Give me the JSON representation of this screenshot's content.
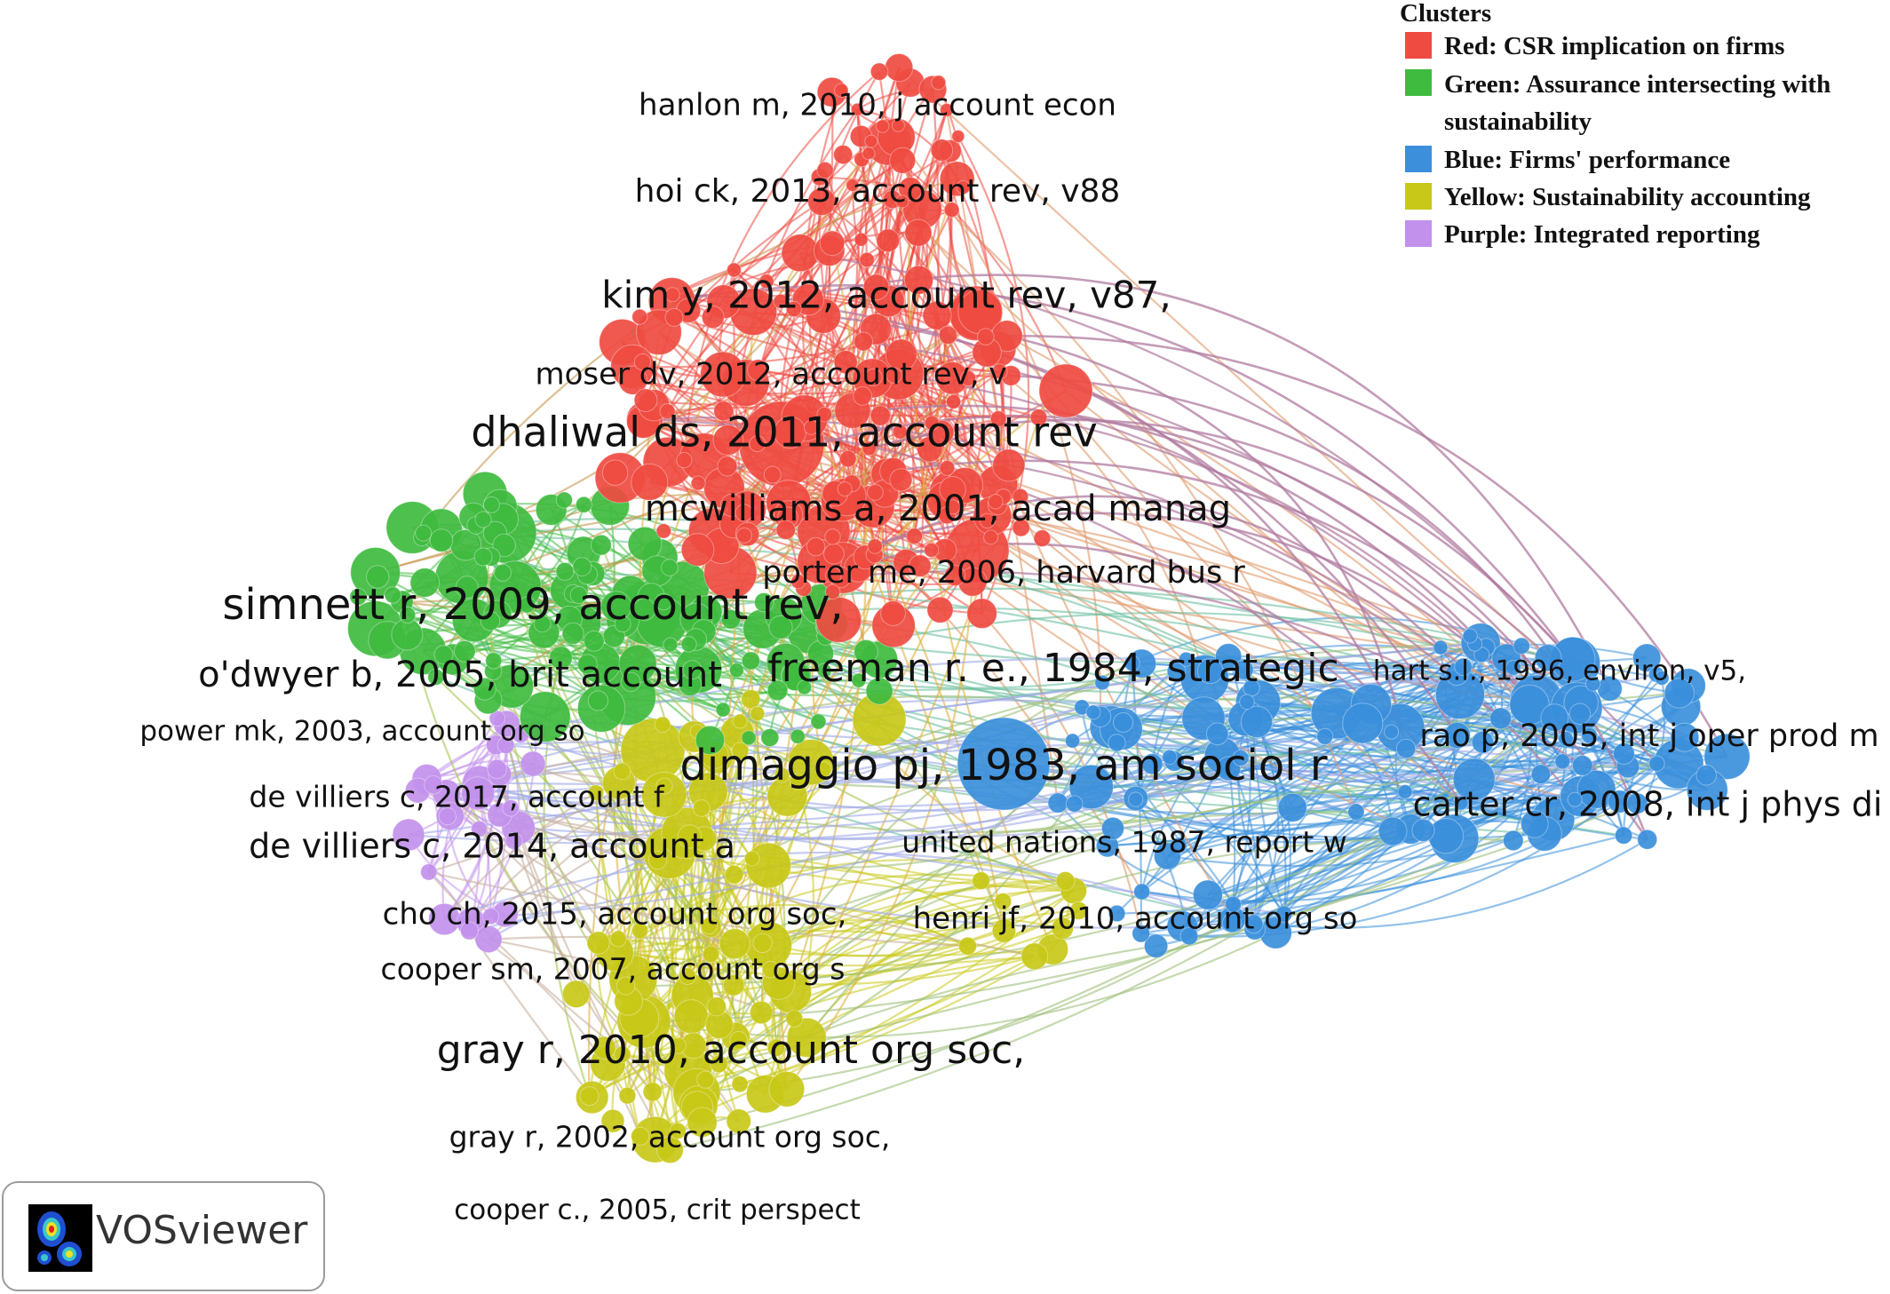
{
  "legend": {
    "title": "Clusters",
    "items": [
      {
        "label": "Red: CSR implication on firms",
        "color": "#ef4b41"
      },
      {
        "label": "Green: Assurance intersecting with sustainability",
        "color": "#3fbb3f"
      },
      {
        "label": "Blue: Firms' performance",
        "color": "#3b8fdb"
      },
      {
        "label": "Yellow: Sustainability accounting",
        "color": "#c8c818"
      },
      {
        "label": "Purple: Integrated reporting",
        "color": "#c291ec"
      }
    ]
  },
  "watermark": {
    "text": "VOSviewer"
  },
  "colors": {
    "red": "#ef4b41",
    "green": "#3fbb3f",
    "blue": "#3b8fdb",
    "yellow": "#c8c818",
    "purple": "#c291ec",
    "link_mauve": "#b07ba0"
  },
  "nodes": [
    {
      "label": "hanlon m, 2010, j account econ",
      "cluster": "red"
    },
    {
      "label": "hoi ck, 2013, account rev, v88",
      "cluster": "red"
    },
    {
      "label": "kim y, 2012, account rev, v87,",
      "cluster": "red"
    },
    {
      "label": "moser dv, 2012, account rev, v",
      "cluster": "red"
    },
    {
      "label": "dhaliwal ds, 2011, account rev",
      "cluster": "red"
    },
    {
      "label": "mcwilliams a, 2001, acad manag",
      "cluster": "red"
    },
    {
      "label": "porter me, 2006, harvard bus r",
      "cluster": "red"
    },
    {
      "label": "freeman r. e., 1984, strategic",
      "cluster": "red"
    },
    {
      "label": "simnett r, 2009, account rev,",
      "cluster": "green"
    },
    {
      "label": "o'dwyer b, 2005, brit account",
      "cluster": "green"
    },
    {
      "label": "power mk, 2003, account org so",
      "cluster": "green"
    },
    {
      "label": "dimaggio pj, 1983, am sociol r",
      "cluster": "blue"
    },
    {
      "label": "hart s.l., 1996, environ, v5,",
      "cluster": "blue"
    },
    {
      "label": "rao p, 2005, int j oper prod m",
      "cluster": "blue"
    },
    {
      "label": "carter cr, 2008, int j phys di",
      "cluster": "blue"
    },
    {
      "label": "henri jf, 2010, account org so",
      "cluster": "blue"
    },
    {
      "label": "united nations, 1987, report w",
      "cluster": "yellow"
    },
    {
      "label": "gray r, 2010, account org soc,",
      "cluster": "yellow"
    },
    {
      "label": "gray r, 2002, account org soc,",
      "cluster": "yellow"
    },
    {
      "label": "cooper c., 2005, crit perspect",
      "cluster": "yellow"
    },
    {
      "label": "de villiers c, 2017, account f",
      "cluster": "purple"
    },
    {
      "label": "de villiers c, 2014, account a",
      "cluster": "purple"
    },
    {
      "label": "cho ch, 2015, account org soc,",
      "cluster": "purple"
    },
    {
      "label": "cooper sm, 2007, account org s",
      "cluster": "purple"
    }
  ]
}
